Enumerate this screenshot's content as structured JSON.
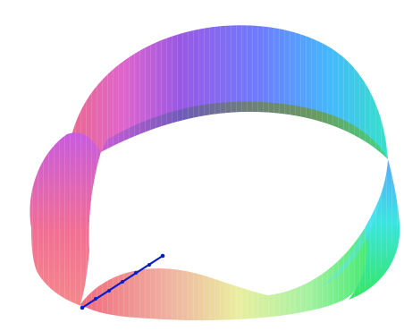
{
  "scene": {
    "subject": "mobius-strip-surface",
    "background": "#ffffff",
    "colors": {
      "top_purple": "#8a55e6",
      "top_blue": "#4a8fff",
      "right_cyan": "#3ee6e6",
      "right_green": "#39e86a",
      "bottom_yellow": "#e8f08a",
      "left_red": "#f05a78",
      "left_magenta": "#e05ad8",
      "inner_dark_green": "#6b8f58",
      "inner_dark_blue": "#5078a8",
      "marker_line": "#0a1ec8"
    },
    "marker_segment": {
      "label_points": 7
    }
  }
}
